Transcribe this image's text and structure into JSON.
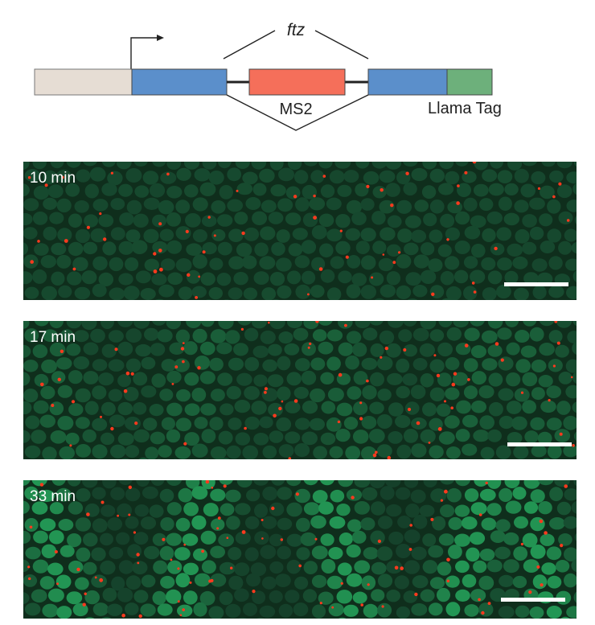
{
  "construct": {
    "gene_label": "ftz",
    "loop_label": "MS2",
    "tag_label": "Llama Tag",
    "colors": {
      "promoter": "#e6ddd4",
      "exon": "#5b8fcb",
      "ms2": "#f56f5a",
      "tag": "#6db07b",
      "line": "#222222"
    }
  },
  "panels": [
    {
      "label": "10 min",
      "nuclei_brightness": 0.04,
      "stripe_pattern": "none"
    },
    {
      "label": "17 min",
      "nuclei_brightness": 0.2,
      "stripe_pattern": "faint"
    },
    {
      "label": "33 min",
      "nuclei_brightness": 0.75,
      "stripe_pattern": "strong"
    }
  ],
  "image_colors": {
    "background": "#0f2e1c",
    "nucleus_dim": "#15402a",
    "nucleus_bright": "#27b362",
    "spot": "#ff3a1e",
    "scale_bar": "#ffffff"
  }
}
